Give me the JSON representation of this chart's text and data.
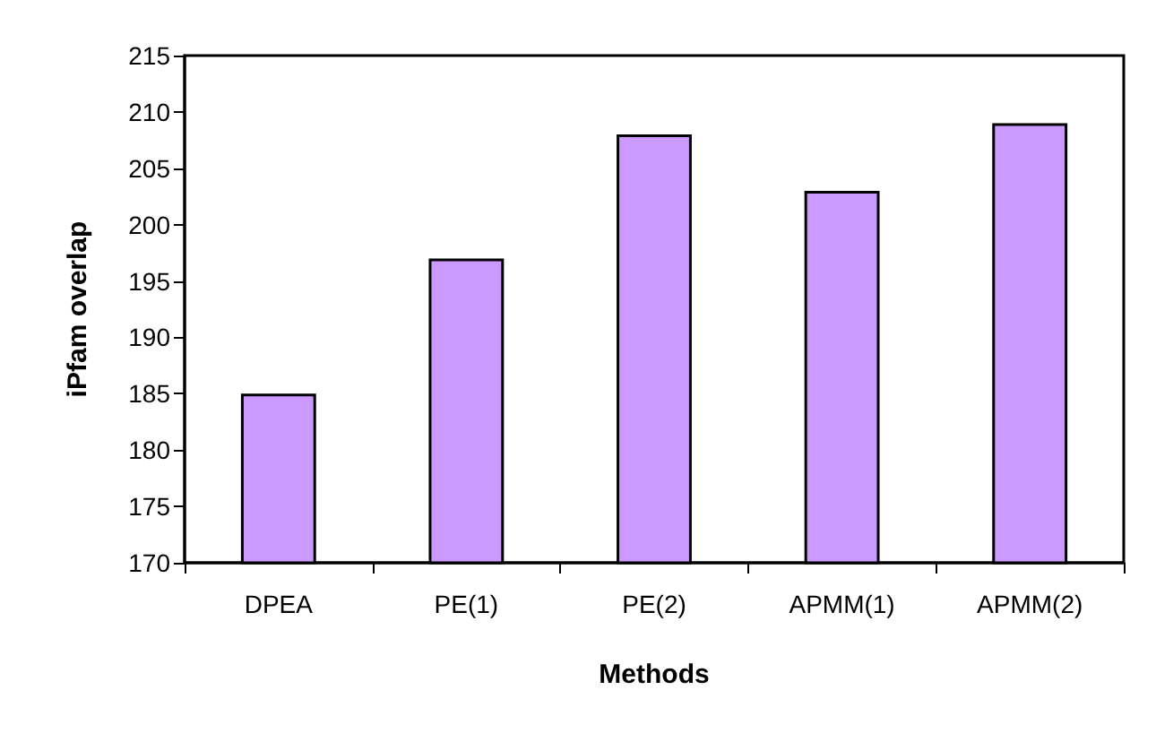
{
  "chart_data": {
    "type": "bar",
    "xlabel": "Methods",
    "ylabel": "iPfam overlap",
    "categories": [
      "DPEA",
      "PE(1)",
      "PE(2)",
      "APMM(1)",
      "APMM(2)"
    ],
    "values": [
      185,
      197,
      208,
      203,
      209
    ],
    "color": "#cc99ff",
    "ylim": [
      170,
      215
    ],
    "yticks": [
      170,
      175,
      180,
      185,
      190,
      195,
      200,
      205,
      210,
      215
    ],
    "grid": false
  }
}
